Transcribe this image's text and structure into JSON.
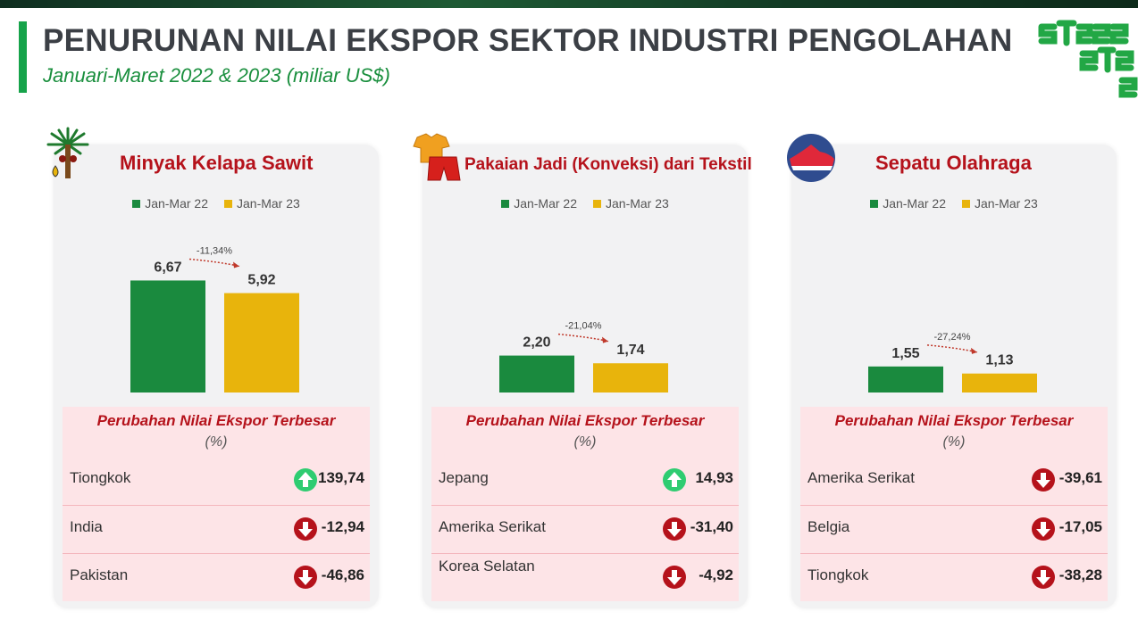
{
  "header": {
    "title": "PENURUNAN NILAI EKSPOR SEKTOR INDUSTRI PENGOLAHAN",
    "subtitle": "Januari-Maret 2022 & 2023 (miliar US$)"
  },
  "logo": {
    "icon": "stats-logo",
    "color": "#22a745"
  },
  "colors": {
    "series_2022": "#1a8a3e",
    "series_2023": "#e8b40c",
    "accent_red": "#b5121b",
    "up": "#2ecc71",
    "down": "#b5121b"
  },
  "legend": {
    "series_2022": "Jan-Mar 22",
    "series_2023": "Jan-Mar 23"
  },
  "changes_header": {
    "title": "Perubahan Nilai Ekspor Terbesar",
    "unit": "(%)"
  },
  "chart_data": [
    {
      "type": "bar",
      "title": "Minyak Kelapa Sawit",
      "icon": "palm-tree-icon",
      "categories": [
        "Jan-Mar 22",
        "Jan-Mar 23"
      ],
      "values": [
        6.67,
        5.92
      ],
      "value_labels": [
        "6,67",
        "5,92"
      ],
      "change_label": "-11,34%",
      "ylim": [
        0,
        8.5
      ],
      "changes": [
        {
          "country": "Tiongkok",
          "direction": "up",
          "value": "139,74"
        },
        {
          "country": "India",
          "direction": "down",
          "value": "-12,94"
        },
        {
          "country": "Pakistan",
          "direction": "down",
          "value": "-46,86"
        }
      ]
    },
    {
      "type": "bar",
      "title": "Pakaian Jadi (Konveksi) dari Tekstil",
      "icon": "clothing-icon",
      "categories": [
        "Jan-Mar 22",
        "Jan-Mar 23"
      ],
      "values": [
        2.2,
        1.74
      ],
      "value_labels": [
        "2,20",
        "1,74"
      ],
      "change_label": "-21,04%",
      "ylim": [
        0,
        8.5
      ],
      "changes": [
        {
          "country": "Jepang",
          "direction": "up",
          "value": "14,93"
        },
        {
          "country": "Amerika Serikat",
          "direction": "down",
          "value": "-31,40"
        },
        {
          "country": "Korea Selatan",
          "direction": "down",
          "value": "-4,92"
        }
      ]
    },
    {
      "type": "bar",
      "title": "Sepatu Olahraga",
      "icon": "sneaker-icon",
      "categories": [
        "Jan-Mar 22",
        "Jan-Mar 23"
      ],
      "values": [
        1.55,
        1.13
      ],
      "value_labels": [
        "1,55",
        "1,13"
      ],
      "change_label": "-27,24%",
      "ylim": [
        0,
        8.5
      ],
      "changes": [
        {
          "country": "Amerika Serikat",
          "direction": "down",
          "value": "-39,61"
        },
        {
          "country": "Belgia",
          "direction": "down",
          "value": "-17,05"
        },
        {
          "country": "Tiongkok",
          "direction": "down",
          "value": "-38,28"
        }
      ]
    }
  ]
}
